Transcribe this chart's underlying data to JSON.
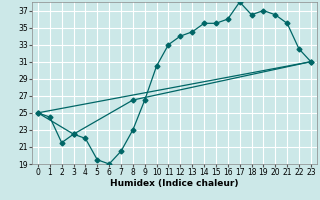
{
  "title": "",
  "xlabel": "Humidex (Indice chaleur)",
  "bg_color": "#cce8e8",
  "grid_color": "#ffffff",
  "line_color": "#006666",
  "xlim": [
    -0.5,
    23.5
  ],
  "ylim": [
    19,
    38
  ],
  "xticks": [
    0,
    1,
    2,
    3,
    4,
    5,
    6,
    7,
    8,
    9,
    10,
    11,
    12,
    13,
    14,
    15,
    16,
    17,
    18,
    19,
    20,
    21,
    22,
    23
  ],
  "yticks": [
    19,
    21,
    23,
    25,
    27,
    29,
    31,
    33,
    35,
    37
  ],
  "line1_x": [
    0,
    1,
    2,
    3,
    4,
    5,
    6,
    7,
    8,
    9,
    10,
    11,
    12,
    13,
    14,
    15,
    16,
    17,
    18,
    19,
    20,
    21,
    22,
    23
  ],
  "line1_y": [
    25,
    24.5,
    21.5,
    22.5,
    22,
    19.5,
    19,
    20.5,
    23,
    26.5,
    30.5,
    33,
    34,
    34.5,
    35.5,
    35.5,
    36,
    38,
    36.5,
    37,
    36.5,
    35.5,
    32.5,
    31
  ],
  "line2_x": [
    0,
    3,
    8,
    23
  ],
  "line2_y": [
    25,
    22.5,
    26.5,
    31
  ],
  "line3_x": [
    0,
    23
  ],
  "line3_y": [
    25,
    31
  ],
  "tick_fontsize": 5.5,
  "xlabel_fontsize": 6.5,
  "marker_size": 2.5,
  "linewidth": 0.9
}
